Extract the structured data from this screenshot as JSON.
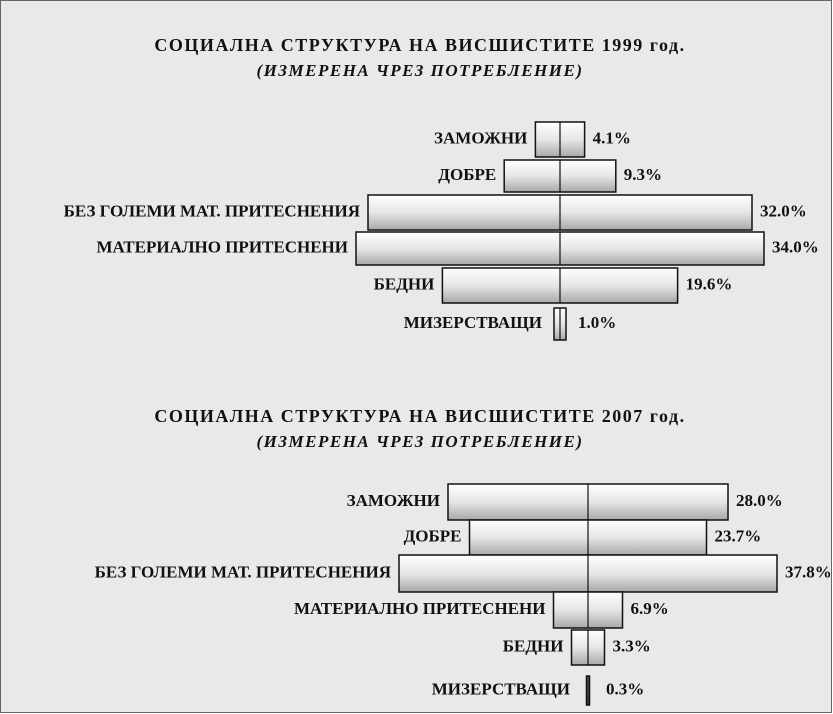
{
  "chart_data": [
    {
      "type": "bar",
      "title": "СОЦИАЛНА СТРУКТУРА НА ВИСШИСТИТЕ 1999 год.",
      "subtitle": "(ИЗМЕРЕНА ЧРЕЗ ПОТРЕБЛЕНИЕ)",
      "categories": [
        "ЗАМОЖНИ",
        "ДОБРЕ",
        "БЕЗ ГОЛЕМИ МАТ. ПРИТЕСНЕНИЯ",
        "МАТЕРИАЛНО ПРИТЕСНЕНИ",
        "БЕДНИ",
        "МИЗЕРСТВАЩИ"
      ],
      "values": [
        4.1,
        9.3,
        32.0,
        34.0,
        19.6,
        1.0
      ],
      "value_labels": [
        "4.1%",
        "9.3%",
        "32.0%",
        "34.0%",
        "19.6%",
        "1.0%"
      ]
    },
    {
      "type": "bar",
      "title": "СОЦИАЛНА СТРУКТУРА НА ВИСШИСТИТЕ  2007 год.",
      "subtitle": "(ИЗМЕРЕНА ЧРЕЗ ПОТРЕБЛЕНИЕ)",
      "categories": [
        "ЗАМОЖНИ",
        "ДОБРЕ",
        "БЕЗ ГОЛЕМИ МАТ. ПРИТЕСНЕНИЯ",
        "МАТЕРИАЛНО ПРИТЕСНЕНИ",
        "БЕДНИ",
        "МИЗЕРСТВАЩИ"
      ],
      "values": [
        28.0,
        23.7,
        37.8,
        6.9,
        3.3,
        0.3
      ],
      "value_labels": [
        "28.0%",
        "23.7%",
        "37.8%",
        "6.9%",
        "3.3%",
        "0.3%"
      ]
    }
  ]
}
